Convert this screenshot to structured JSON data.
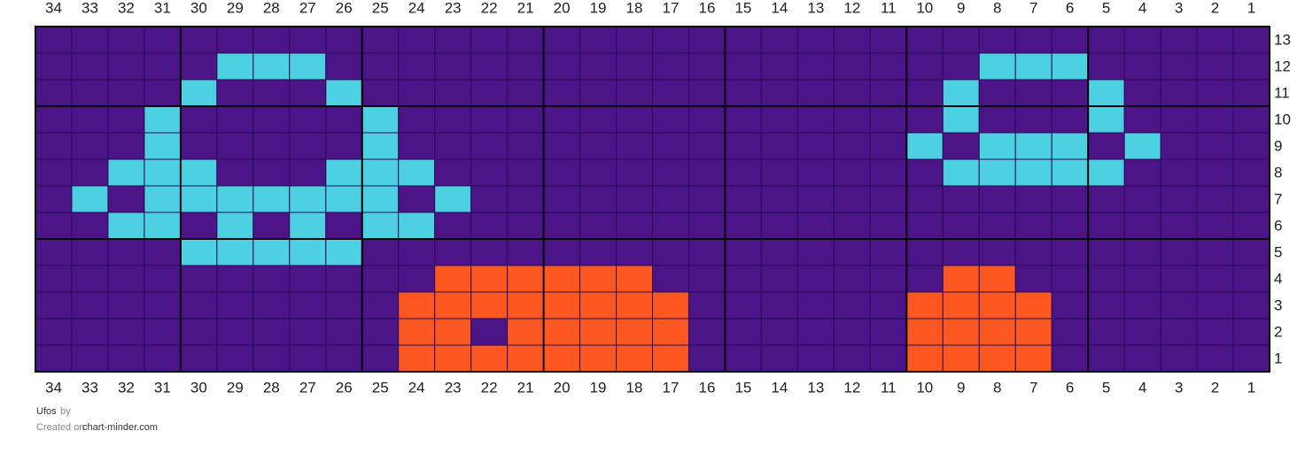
{
  "grid": {
    "title": "Ufos",
    "by": "by",
    "created_on": "Created on",
    "site": "chart-minder.com",
    "columns": [
      34,
      33,
      32,
      31,
      30,
      29,
      28,
      27,
      26,
      25,
      24,
      23,
      22,
      21,
      20,
      19,
      18,
      17,
      16,
      15,
      14,
      13,
      12,
      11,
      10,
      9,
      8,
      7,
      6,
      5,
      4,
      3,
      2,
      1
    ],
    "row_labels": [
      13,
      12,
      11,
      10,
      9,
      8,
      7,
      6,
      5,
      4,
      3,
      2,
      1
    ],
    "palette": {
      "P": "#4b1487",
      "C": "#4dd0e1",
      "O": "#ff5722"
    },
    "rows": [
      "PPPPPPPPPPPPPPPPPPPPPPPPPPPPPPPPPP",
      "PPPPPCCCPPPPPPPPPPPPPPPPPPCCCPPPPP",
      "PPPPCPPPCPPPPPPPPPPPPPPPPCPPPCPPPP",
      "PPPCPPPPPCPPPPPPPPPPPPPPPCPPPCPPPP",
      "PPPCPPPPPCPPPPPPPPPPPPPPCPCCCPCPPP",
      "PPCCCPPPCCCPPPPPPPPPPPPPPCCCCCPPPP",
      "PCPCCCCCCCPCPPPPPPPPPPPPPPPPPPPPPP",
      "PPCCPCPCPCCPPPPPPPPPPPPPPPPPPPPPPP",
      "PPPPCCCCCPPPPPPPPPPPPPPPPPPPPPPPPP",
      "PPPPPPPPPPPOOOOOOPPPPPPPPOOPPPPPPP",
      "PPPPPPPPPPOOOOOOOOPPPPPPOOOOPPPPPP",
      "PPPPPPPPPPOOPOOOOOPPPPPPOOOOPPPPPP",
      "PPPPPPPPPPOOOOOOOOPPPPPPOOOOPPPPPP"
    ]
  }
}
